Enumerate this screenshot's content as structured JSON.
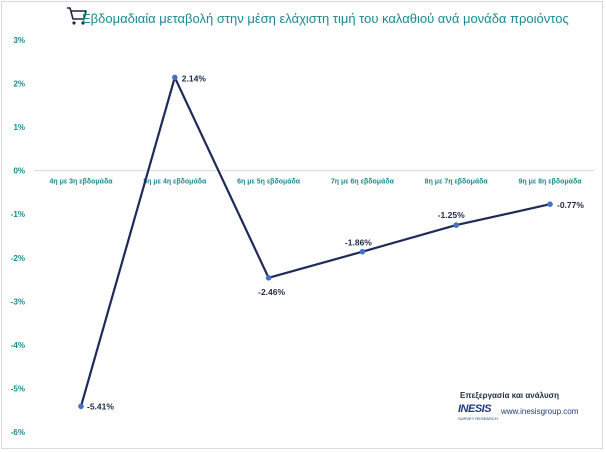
{
  "title": "Εβδομαδιαία μεταβολή  στην μέση ελάχιστη τιμή του καλαθιού ανά μονάδα προιόντος",
  "icon": "shopping-cart-icon",
  "colors": {
    "line": "#1f2a5a",
    "marker": "#4472c4",
    "text": "#1a8a8f",
    "grid": "#d9d9d9"
  },
  "credit": {
    "label": "Επεξεργασία και ανάλυση",
    "logo_text": "INESIS",
    "logo_sub": "SURVEY RESEARCH",
    "website": "www.inesisgroup.com"
  },
  "chart_data": {
    "type": "line",
    "title": "Εβδομαδιαία μεταβολή  στην μέση ελάχιστη τιμή του καλαθιού ανά μονάδα προιόντος",
    "categories": [
      "4η με 3η εβδομάδα",
      "5η με 4η εβδομάδα",
      "6η με 5η εβδομάδα",
      "7η με 6η εβδομάδα",
      "8η με 7η εβδομάδα",
      "9η με 8η εβδομάδα"
    ],
    "values": [
      -5.41,
      2.14,
      -2.46,
      -1.86,
      -1.25,
      -0.77
    ],
    "data_labels": [
      "-5.41%",
      "2.14%",
      "-2.46%",
      "-1.86%",
      "-1.25%",
      "-0.77%"
    ],
    "yticks": [
      3,
      2,
      1,
      0,
      -1,
      -2,
      -3,
      -4,
      -5,
      -6
    ],
    "ytick_labels": [
      "3%",
      "2%",
      "1%",
      "0%",
      "-1%",
      "-2%",
      "-3%",
      "-4%",
      "-5%",
      "-6%"
    ],
    "ylim": [
      -6,
      3
    ],
    "xlabel": "",
    "ylabel": "",
    "grid": false
  }
}
